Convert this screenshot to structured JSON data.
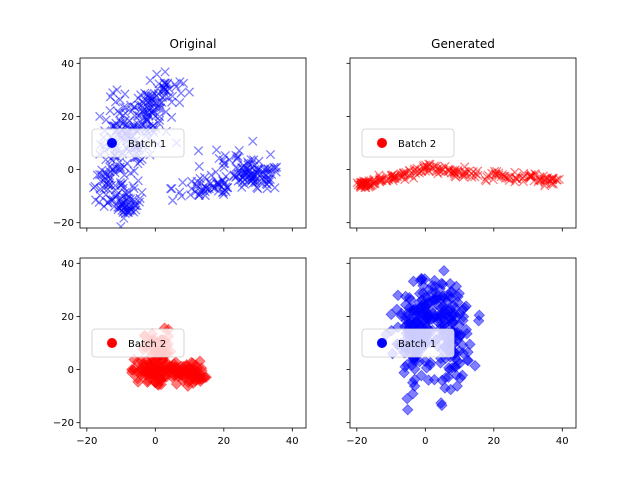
{
  "chart_data": [
    {
      "panel": "top-left",
      "type": "scatter",
      "title": "Original",
      "xlim": [
        -22,
        44
      ],
      "ylim": [
        -22,
        42
      ],
      "xticks": [
        -20,
        0,
        20,
        40
      ],
      "yticks": [
        -20,
        0,
        20,
        40
      ],
      "legend": {
        "label": "Batch 1",
        "color": "#0000ff",
        "placement": "center-left"
      },
      "series": [
        {
          "name": "Batch 1",
          "color": "#0000ff",
          "marker": "x",
          "clusters": [
            {
              "cx": -9,
              "cy": 10,
              "sx": 3.5,
              "sy": 8,
              "n": 120
            },
            {
              "cx": -2,
              "cy": 22,
              "sx": 3,
              "sy": 6,
              "n": 80
            },
            {
              "cx": 3,
              "cy": 30,
              "sx": 2.5,
              "sy": 3,
              "n": 30
            },
            {
              "cx": -8,
              "cy": -13,
              "sx": 2,
              "sy": 2.5,
              "n": 50
            },
            {
              "cx": -14,
              "cy": -6,
              "sx": 2.5,
              "sy": 3,
              "n": 40
            },
            {
              "cx": 15,
              "cy": -7,
              "sx": 5,
              "sy": 2.5,
              "n": 50
            },
            {
              "cx": 29,
              "cy": -3,
              "sx": 4,
              "sy": 2.5,
              "n": 80
            },
            {
              "cx": 24,
              "cy": 3,
              "sx": 4,
              "sy": 4,
              "n": 30
            }
          ]
        }
      ]
    },
    {
      "panel": "top-right",
      "type": "scatter",
      "title": "Generated",
      "xlim": [
        -22,
        44
      ],
      "ylim": [
        -22,
        42
      ],
      "xticks": [
        -20,
        0,
        20,
        40
      ],
      "yticks": [
        -20,
        0,
        20,
        40
      ],
      "legend": {
        "label": "Batch 2",
        "color": "#ff0000",
        "placement": "center-left"
      },
      "series": [
        {
          "name": "Batch 2",
          "color": "#ff0000",
          "marker": "x",
          "curve": [
            [
              -19,
              -6
            ],
            [
              -10,
              -3
            ],
            [
              0,
              0.5
            ],
            [
              10,
              -1
            ],
            [
              20,
              -2
            ],
            [
              30,
              -3
            ],
            [
              39,
              -4
            ]
          ],
          "n": 220,
          "jitter": 0.9
        }
      ]
    },
    {
      "panel": "bottom-left",
      "type": "scatter",
      "title": "",
      "xlim": [
        -22,
        44
      ],
      "ylim": [
        -22,
        42
      ],
      "xticks": [
        -20,
        0,
        20,
        40
      ],
      "yticks": [
        -20,
        0,
        20,
        40
      ],
      "legend": {
        "label": "Batch 2",
        "color": "#ff0000",
        "placement": "center-left"
      },
      "series": [
        {
          "name": "Batch 2",
          "color": "#ff0000",
          "marker": "D",
          "clusters": [
            {
              "cx": -2,
              "cy": -1,
              "sx": 2.5,
              "sy": 2.5,
              "n": 70
            },
            {
              "cx": 1,
              "cy": 7,
              "sx": 2,
              "sy": 4,
              "n": 50
            },
            {
              "cx": 8,
              "cy": -1,
              "sx": 3,
              "sy": 2,
              "n": 60
            },
            {
              "cx": 12,
              "cy": -2,
              "sx": 1.5,
              "sy": 1.5,
              "n": 25
            }
          ]
        }
      ]
    },
    {
      "panel": "bottom-right",
      "type": "scatter",
      "title": "",
      "xlim": [
        -22,
        44
      ],
      "ylim": [
        -22,
        42
      ],
      "xticks": [
        -20,
        0,
        20,
        40
      ],
      "yticks": [
        -20,
        0,
        20,
        40
      ],
      "legend": {
        "label": "Batch 1",
        "color": "#0000ff",
        "placement": "center-left"
      },
      "series": [
        {
          "name": "Batch 1",
          "color": "#0000ff",
          "marker": "D",
          "clusters": [
            {
              "cx": -4,
              "cy": 10,
              "sx": 2.5,
              "sy": 8,
              "n": 90
            },
            {
              "cx": 8,
              "cy": 10,
              "sx": 2.5,
              "sy": 8,
              "n": 90
            },
            {
              "cx": 2,
              "cy": 22,
              "sx": 5,
              "sy": 5,
              "n": 70
            },
            {
              "cx": 2,
              "cy": 32,
              "sx": 3,
              "sy": 2,
              "n": 15
            },
            {
              "cx": 0,
              "cy": 15,
              "sx": 4,
              "sy": 5,
              "n": 50
            }
          ]
        }
      ]
    }
  ]
}
